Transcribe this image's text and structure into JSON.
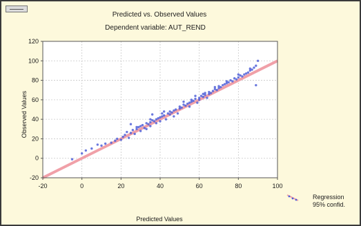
{
  "chart_data": {
    "type": "scatter",
    "title": "Predicted vs. Observed Values",
    "subtitle": "Dependent variable: AUT_REND",
    "xlabel": "Predicted Values",
    "ylabel": "Observed Values",
    "xlim": [
      -20,
      100
    ],
    "ylim": [
      -20,
      120
    ],
    "xticks": [
      -20,
      0,
      20,
      40,
      60,
      80,
      100
    ],
    "yticks": [
      -20,
      0,
      20,
      40,
      60,
      80,
      100,
      120
    ],
    "grid": true,
    "legend_position": "bottom-right",
    "legend": [
      "Regression",
      "95% confid."
    ],
    "regression_line": {
      "slope": 1,
      "intercept": 0
    },
    "colors": {
      "points": "#5060d8",
      "regression": "#f0a0a8",
      "plot_bg": "#ffffff",
      "frame_bg": "#fdf9dc"
    },
    "series": [
      {
        "x": [
          -5,
          0,
          2,
          5,
          8,
          10,
          12,
          15,
          17,
          18,
          20,
          21,
          22,
          23,
          24,
          25,
          26,
          27,
          28,
          29,
          30,
          30,
          31,
          32,
          33,
          34,
          35,
          35,
          36,
          37,
          38,
          38,
          39,
          40,
          40,
          41,
          42,
          43,
          44,
          45,
          45,
          46,
          47,
          48,
          49,
          50,
          50,
          51,
          52,
          53,
          54,
          55,
          55,
          56,
          57,
          58,
          59,
          60,
          60,
          61,
          62,
          63,
          64,
          65,
          65,
          66,
          67,
          68,
          69,
          70,
          70,
          71,
          72,
          73,
          74,
          75,
          76,
          77,
          78,
          79,
          80,
          81,
          82,
          83,
          84,
          85,
          86,
          87,
          88,
          89,
          90,
          25,
          28,
          33,
          36,
          42,
          47,
          52,
          58,
          63,
          68,
          74,
          80,
          86,
          89,
          35,
          41,
          56,
          62
        ],
        "y": [
          -1,
          5,
          8,
          10,
          14,
          13,
          15,
          16,
          18,
          20,
          19,
          22,
          24,
          27,
          21,
          26,
          29,
          25,
          30,
          32,
          28,
          33,
          34,
          31,
          36,
          35,
          37,
          33,
          39,
          38,
          40,
          36,
          41,
          42,
          38,
          43,
          44,
          40,
          46,
          45,
          48,
          47,
          49,
          50,
          46,
          51,
          53,
          52,
          55,
          54,
          56,
          57,
          53,
          58,
          59,
          61,
          57,
          62,
          60,
          64,
          63,
          65,
          62,
          66,
          68,
          67,
          69,
          71,
          70,
          72,
          74,
          73,
          75,
          76,
          77,
          78,
          80,
          79,
          82,
          81,
          83,
          85,
          84,
          86,
          87,
          88,
          90,
          91,
          93,
          95,
          100,
          35,
          32,
          30,
          45,
          48,
          43,
          58,
          64,
          67,
          73,
          79,
          86,
          92,
          75,
          40,
          46,
          60,
          66
        ]
      }
    ]
  }
}
